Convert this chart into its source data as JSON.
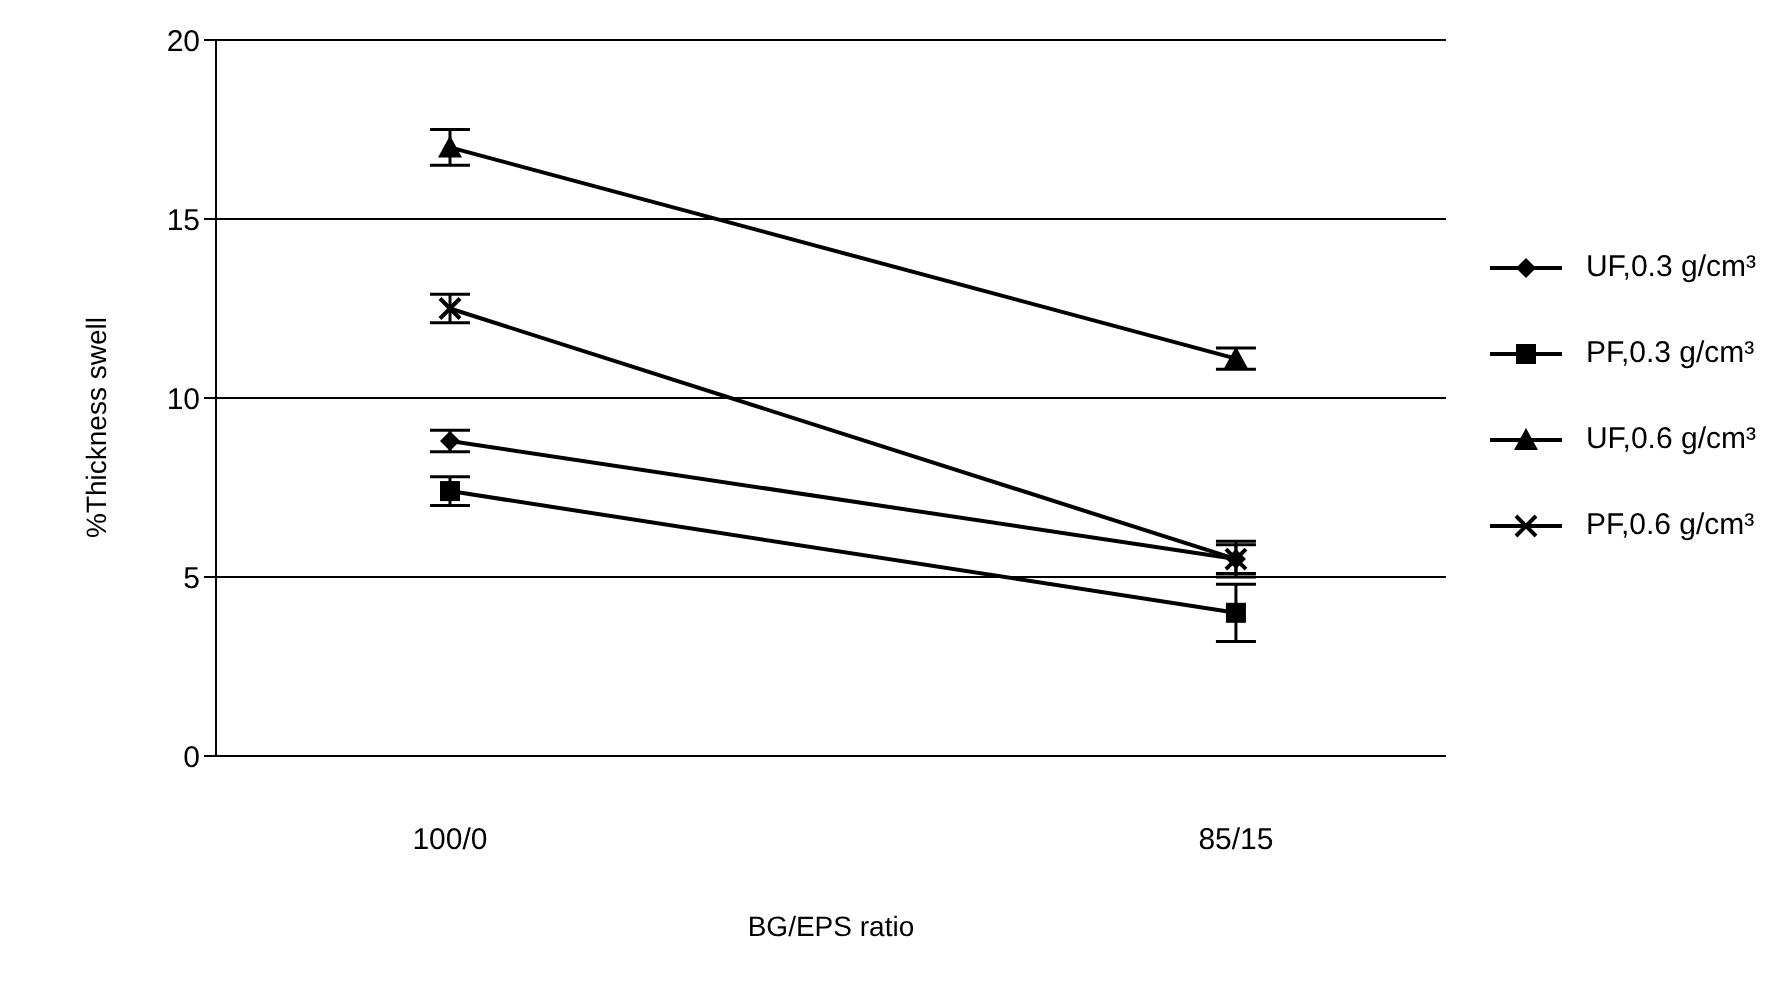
{
  "chart_data": {
    "type": "line",
    "xlabel": "BG/EPS ratio",
    "ylabel": "%Thickness swell",
    "categories": [
      "100/0",
      "85/15"
    ],
    "series": [
      {
        "name": "UF,0.3 g/cm³",
        "color": "#000000",
        "marker": "diamond",
        "values": [
          8.8,
          5.5
        ],
        "errors": [
          0.3,
          0.4
        ]
      },
      {
        "name": "PF,0.3 g/cm³",
        "color": "#000000",
        "marker": "square",
        "values": [
          7.4,
          4.0
        ],
        "errors": [
          0.4,
          0.8
        ]
      },
      {
        "name": "UF,0.6 g/cm³",
        "color": "#000000",
        "marker": "triangle",
        "values": [
          17.0,
          11.1
        ],
        "errors": [
          0.5,
          0.3
        ]
      },
      {
        "name": "PF,0.6 g/cm³",
        "color": "#000000",
        "marker": "cross",
        "values": [
          12.5,
          5.5
        ],
        "errors": [
          0.4,
          0.5
        ]
      }
    ],
    "ylim": [
      0,
      20
    ],
    "yticks": [
      0,
      5,
      10,
      15,
      20
    ],
    "grid": "y",
    "legend": "right",
    "line_style": "solid"
  }
}
